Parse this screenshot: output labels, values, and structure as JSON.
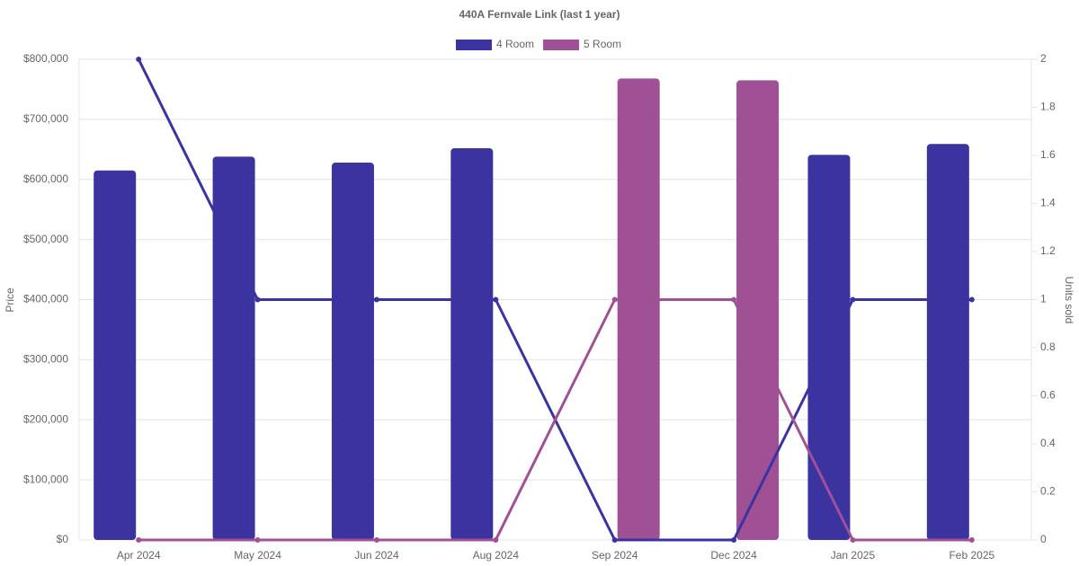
{
  "chart_data": {
    "type": "bar-line",
    "title": "440A Fernvale Link (last 1 year)",
    "y_label": "Price",
    "y2_label": "Units sold",
    "categories": [
      "Apr 2024",
      "May 2024",
      "Jun 2024",
      "Aug 2024",
      "Sep 2024",
      "Dec 2024",
      "Jan 2025",
      "Feb 2025"
    ],
    "series": [
      {
        "name": "4 Room",
        "color": "#3a33a0",
        "values": [
          615000,
          638000,
          628000,
          652000,
          null,
          null,
          641000,
          659000
        ],
        "units": [
          2,
          1,
          1,
          1,
          0,
          0,
          1,
          1
        ]
      },
      {
        "name": "5 Room",
        "color": "#a05095",
        "values": [
          null,
          null,
          null,
          null,
          768000,
          765000,
          null,
          null
        ],
        "units": [
          0,
          0,
          0,
          0,
          1,
          1,
          0,
          0
        ]
      }
    ],
    "ylim": [
      0,
      800000
    ],
    "yticks": [
      {
        "value": 0,
        "label": "$0"
      },
      {
        "value": 100000,
        "label": "$100,000"
      },
      {
        "value": 200000,
        "label": "$200,000"
      },
      {
        "value": 300000,
        "label": "$300,000"
      },
      {
        "value": 400000,
        "label": "$400,000"
      },
      {
        "value": 500000,
        "label": "$500,000"
      },
      {
        "value": 600000,
        "label": "$600,000"
      },
      {
        "value": 700000,
        "label": "$700,000"
      },
      {
        "value": 800000,
        "label": "$800,000"
      }
    ],
    "y2lim": [
      0,
      2
    ],
    "y2ticks": [
      0,
      0.2,
      0.4,
      0.6,
      0.8,
      1,
      1.2,
      1.4,
      1.6,
      1.8,
      2
    ],
    "grid": true
  }
}
